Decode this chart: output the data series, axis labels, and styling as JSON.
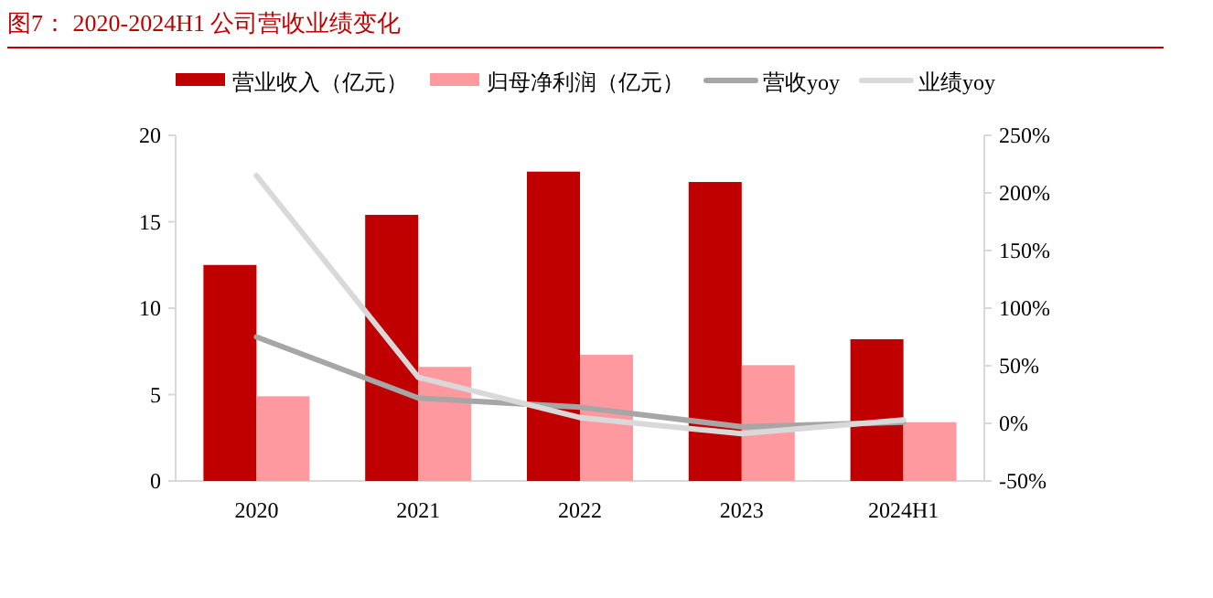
{
  "chart_data": {
    "type": "bar",
    "title": "图7： 2020-2024H1 公司营收业绩变化",
    "categories": [
      "2020",
      "2021",
      "2022",
      "2023",
      "2024H1"
    ],
    "series": [
      {
        "name": "营业收入（亿元）",
        "color": "#c00000",
        "values": [
          12.5,
          15.4,
          17.9,
          17.3,
          8.2
        ]
      },
      {
        "name": "归母净利润（亿元）",
        "color": "#ff99a0",
        "values": [
          4.9,
          6.6,
          7.3,
          6.7,
          3.4
        ]
      },
      {
        "name": "营收yoy",
        "type": "line",
        "axis": "y2",
        "color": "#a6a6a6",
        "values": [
          75,
          22,
          14,
          -3,
          1
        ]
      },
      {
        "name": "业绩yoy",
        "type": "line",
        "axis": "y2",
        "color": "#d9d9d9",
        "values": [
          215,
          40,
          5,
          -9,
          3
        ]
      }
    ],
    "ylim": [
      0,
      20
    ],
    "yticks": [
      0,
      5,
      10,
      15,
      20
    ],
    "y2lim": [
      -50,
      250
    ],
    "y2ticks": [
      {
        "value": -50,
        "label": "-50%"
      },
      {
        "value": 0,
        "label": "0%"
      },
      {
        "value": 50,
        "label": "50%"
      },
      {
        "value": 100,
        "label": "100%"
      },
      {
        "value": 150,
        "label": "150%"
      },
      {
        "value": 200,
        "label": "200%"
      },
      {
        "value": 250,
        "label": "250%"
      }
    ],
    "legend": "top",
    "grid": false
  }
}
